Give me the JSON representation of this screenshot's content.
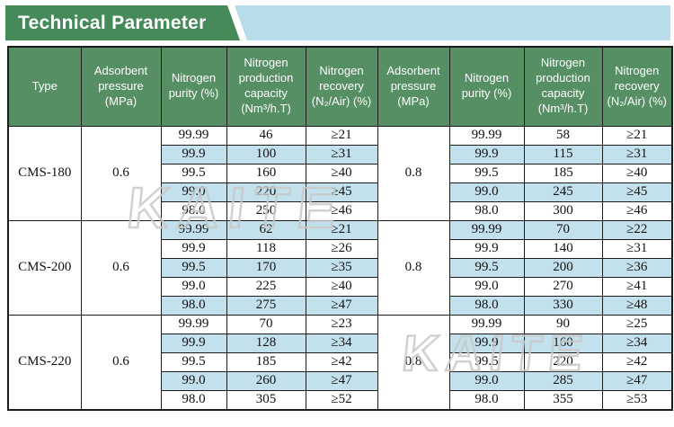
{
  "banner": {
    "title": "Technical Parameter"
  },
  "watermark": {
    "text": "KAITE"
  },
  "colors": {
    "banner_green": "#468a59",
    "strip_blue": "#b8dce9",
    "header_green": "#558f63",
    "row_highlight_blue": "#c3e1ed",
    "border_black": "#1c1c1c"
  },
  "table": {
    "headers": [
      "Type",
      "Adsorbent pressure (MPa)",
      "Nitrogen purity (%)",
      "Nitrogen production capacity (Nm³/h.T)",
      "Nitrogen recovery (N₂/Air) (%)",
      "Adsorbent pressure (MPa)",
      "Nitrogen purity (%)",
      "Nitrogen production capacity (Nm³/h.T)",
      "Nitrogen recovery (N₂/Air) (%)"
    ],
    "groups": [
      {
        "type": "CMS-180",
        "pressure_left": "0.6",
        "pressure_right": "0.8",
        "rows": [
          {
            "purity": "99.99",
            "capacity_left": "46",
            "recovery_left": "≥21",
            "capacity_right": "58",
            "recovery_right": "≥21",
            "shaded": false
          },
          {
            "purity": "99.9",
            "capacity_left": "100",
            "recovery_left": "≥31",
            "capacity_right": "115",
            "recovery_right": "≥31",
            "shaded": true
          },
          {
            "purity": "99.5",
            "capacity_left": "160",
            "recovery_left": "≥40",
            "capacity_right": "185",
            "recovery_right": "≥40",
            "shaded": false
          },
          {
            "purity": "99.0",
            "capacity_left": "220",
            "recovery_left": "≥45",
            "capacity_right": "245",
            "recovery_right": "≥45",
            "shaded": true
          },
          {
            "purity": "98.0",
            "capacity_left": "250",
            "recovery_left": "≥46",
            "capacity_right": "300",
            "recovery_right": "≥46",
            "shaded": false
          }
        ]
      },
      {
        "type": "CMS-200",
        "pressure_left": "0.6",
        "pressure_right": "0.8",
        "rows": [
          {
            "purity": "99.99",
            "capacity_left": "62",
            "recovery_left": "≥21",
            "capacity_right": "70",
            "recovery_right": "≥22",
            "shaded": true
          },
          {
            "purity": "99.9",
            "capacity_left": "118",
            "recovery_left": "≥26",
            "capacity_right": "140",
            "recovery_right": "≥31",
            "shaded": false
          },
          {
            "purity": "99.5",
            "capacity_left": "170",
            "recovery_left": "≥35",
            "capacity_right": "200",
            "recovery_right": "≥36",
            "shaded": true
          },
          {
            "purity": "99.0",
            "capacity_left": "225",
            "recovery_left": "≥40",
            "capacity_right": "270",
            "recovery_right": "≥41",
            "shaded": false
          },
          {
            "purity": "98.0",
            "capacity_left": "275",
            "recovery_left": "≥47",
            "capacity_right": "330",
            "recovery_right": "≥48",
            "shaded": true
          }
        ]
      },
      {
        "type": "CMS-220",
        "pressure_left": "0.6",
        "pressure_right": "0.8",
        "rows": [
          {
            "purity": "99.99",
            "capacity_left": "70",
            "recovery_left": "≥23",
            "capacity_right": "90",
            "recovery_right": "≥25",
            "shaded": false
          },
          {
            "purity": "99.9",
            "capacity_left": "128",
            "recovery_left": "≥34",
            "capacity_right": "160",
            "recovery_right": "≥34",
            "shaded": true
          },
          {
            "purity": "99.5",
            "capacity_left": "185",
            "recovery_left": "≥42",
            "capacity_right": "220",
            "recovery_right": "≥42",
            "shaded": false
          },
          {
            "purity": "99.0",
            "capacity_left": "260",
            "recovery_left": "≥47",
            "capacity_right": "285",
            "recovery_right": "≥47",
            "shaded": true
          },
          {
            "purity": "98.0",
            "capacity_left": "305",
            "recovery_left": "≥52",
            "capacity_right": "355",
            "recovery_right": "≥53",
            "shaded": false
          }
        ]
      }
    ]
  }
}
